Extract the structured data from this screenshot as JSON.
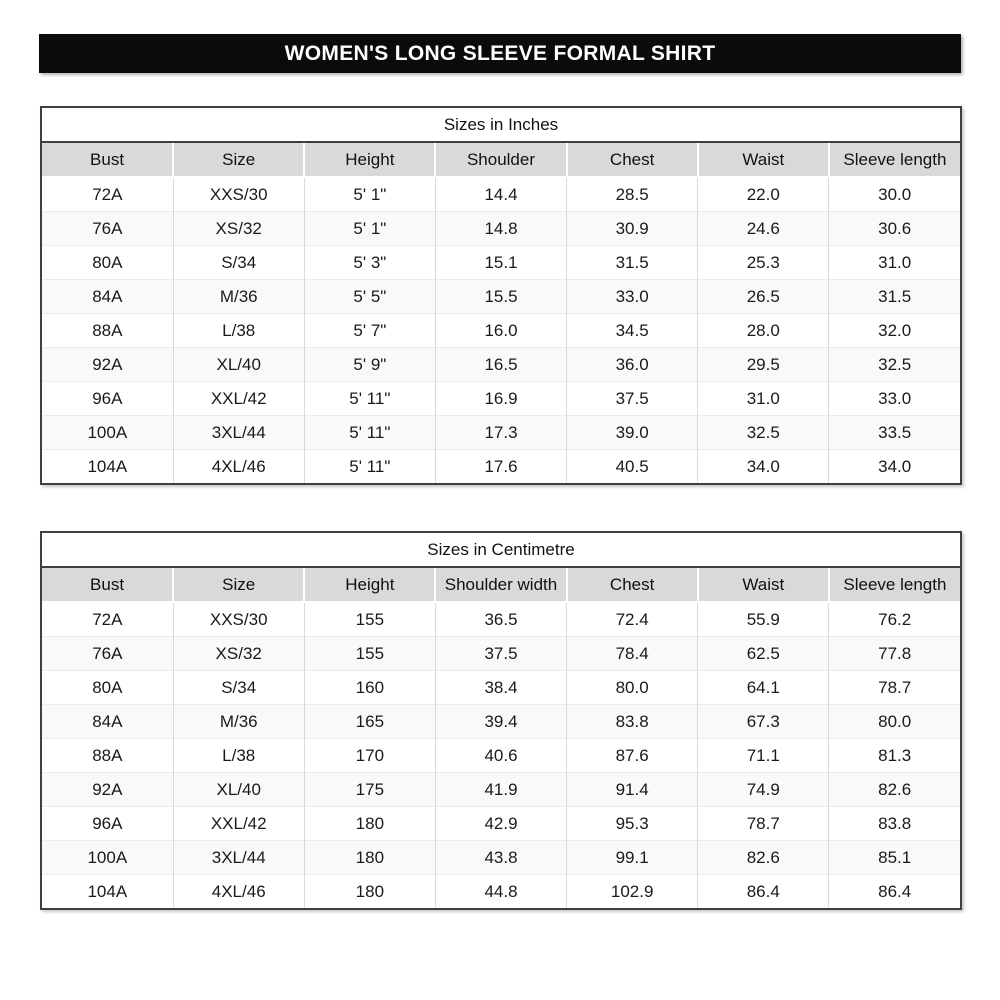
{
  "header": {
    "title": "WOMEN'S LONG SLEEVE FORMAL SHIRT",
    "background_color": "#0b0b0b",
    "text_color": "#ffffff"
  },
  "colors": {
    "table_border": "#3f3f3f",
    "header_row_background": "#d9d9d9",
    "grid_line": "#d9d9d9",
    "text": "#1a1a1a"
  },
  "tables": [
    {
      "title": "Sizes in Inches",
      "columns": [
        "Bust",
        "Size",
        "Height",
        "Shoulder",
        "Chest",
        "Waist",
        "Sleeve length"
      ],
      "rows": [
        [
          "72A",
          "XXS/30",
          "5' 1\"",
          "14.4",
          "28.5",
          "22.0",
          "30.0"
        ],
        [
          "76A",
          "XS/32",
          "5' 1\"",
          "14.8",
          "30.9",
          "24.6",
          "30.6"
        ],
        [
          "80A",
          "S/34",
          "5' 3\"",
          "15.1",
          "31.5",
          "25.3",
          "31.0"
        ],
        [
          "84A",
          "M/36",
          "5' 5\"",
          "15.5",
          "33.0",
          "26.5",
          "31.5"
        ],
        [
          "88A",
          "L/38",
          "5' 7\"",
          "16.0",
          "34.5",
          "28.0",
          "32.0"
        ],
        [
          "92A",
          "XL/40",
          "5' 9\"",
          "16.5",
          "36.0",
          "29.5",
          "32.5"
        ],
        [
          "96A",
          "XXL/42",
          "5' 11\"",
          "16.9",
          "37.5",
          "31.0",
          "33.0"
        ],
        [
          "100A",
          "3XL/44",
          "5' 11\"",
          "17.3",
          "39.0",
          "32.5",
          "33.5"
        ],
        [
          "104A",
          "4XL/46",
          "5' 11\"",
          "17.6",
          "40.5",
          "34.0",
          "34.0"
        ]
      ]
    },
    {
      "title": "Sizes in Centimetre",
      "columns": [
        "Bust",
        "Size",
        "Height",
        "Shoulder width",
        "Chest",
        "Waist",
        "Sleeve length"
      ],
      "rows": [
        [
          "72A",
          "XXS/30",
          "155",
          "36.5",
          "72.4",
          "55.9",
          "76.2"
        ],
        [
          "76A",
          "XS/32",
          "155",
          "37.5",
          "78.4",
          "62.5",
          "77.8"
        ],
        [
          "80A",
          "S/34",
          "160",
          "38.4",
          "80.0",
          "64.1",
          "78.7"
        ],
        [
          "84A",
          "M/36",
          "165",
          "39.4",
          "83.8",
          "67.3",
          "80.0"
        ],
        [
          "88A",
          "L/38",
          "170",
          "40.6",
          "87.6",
          "71.1",
          "81.3"
        ],
        [
          "92A",
          "XL/40",
          "175",
          "41.9",
          "91.4",
          "74.9",
          "82.6"
        ],
        [
          "96A",
          "XXL/42",
          "180",
          "42.9",
          "95.3",
          "78.7",
          "83.8"
        ],
        [
          "100A",
          "3XL/44",
          "180",
          "43.8",
          "99.1",
          "82.6",
          "85.1"
        ],
        [
          "104A",
          "4XL/46",
          "180",
          "44.8",
          "102.9",
          "86.4",
          "86.4"
        ]
      ]
    }
  ]
}
